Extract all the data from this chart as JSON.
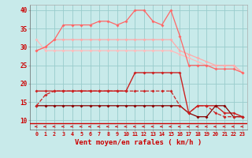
{
  "x": [
    0,
    1,
    2,
    3,
    4,
    5,
    6,
    7,
    8,
    9,
    10,
    11,
    12,
    13,
    14,
    15,
    16,
    17,
    18,
    19,
    20,
    21,
    22,
    23
  ],
  "line1_light": [
    32,
    29,
    29,
    29,
    29,
    29,
    29,
    29,
    29,
    29,
    29,
    29,
    29,
    29,
    29,
    29,
    28,
    27,
    26,
    25,
    25,
    25,
    25,
    23
  ],
  "line2_pink": [
    29,
    30,
    32,
    32,
    32,
    32,
    32,
    32,
    32,
    32,
    32,
    32,
    32,
    32,
    32,
    32,
    29,
    28,
    27,
    26,
    25,
    25,
    25,
    23
  ],
  "line3_bright": [
    29,
    30,
    32,
    36,
    36,
    36,
    36,
    37,
    37,
    36,
    37,
    40,
    40,
    37,
    36,
    40,
    33,
    25,
    25,
    25,
    24,
    24,
    24,
    23
  ],
  "line4_med": [
    18,
    18,
    18,
    18,
    18,
    18,
    18,
    18,
    18,
    18,
    18,
    23,
    23,
    23,
    23,
    23,
    23,
    12,
    14,
    14,
    14,
    12,
    12,
    11
  ],
  "line5_dark": [
    14,
    14,
    14,
    14,
    14,
    14,
    14,
    14,
    14,
    14,
    14,
    14,
    14,
    14,
    14,
    14,
    14,
    12,
    11,
    11,
    14,
    14,
    11,
    11
  ],
  "line6_thin": [
    14,
    17,
    18,
    18,
    18,
    18,
    18,
    18,
    18,
    18,
    18,
    18,
    18,
    18,
    18,
    18,
    14,
    12,
    14,
    14,
    12,
    11,
    11,
    11
  ],
  "colors": {
    "line1_light": "#ffbbbb",
    "line2_pink": "#ffaaaa",
    "line3_bright": "#ff6666",
    "line4_med": "#cc2222",
    "line5_dark": "#880000",
    "line6_thin": "#cc2222"
  },
  "bg_color": "#c8eaea",
  "grid_color": "#99cccc",
  "xlabel": "Vent moyen/en rafales ( km/h )",
  "ylim": [
    7.5,
    41.5
  ],
  "yticks": [
    10,
    15,
    20,
    25,
    30,
    35,
    40
  ],
  "xlabel_color": "#cc0000",
  "tick_color": "#cc0000",
  "axhline_y": 9.2
}
